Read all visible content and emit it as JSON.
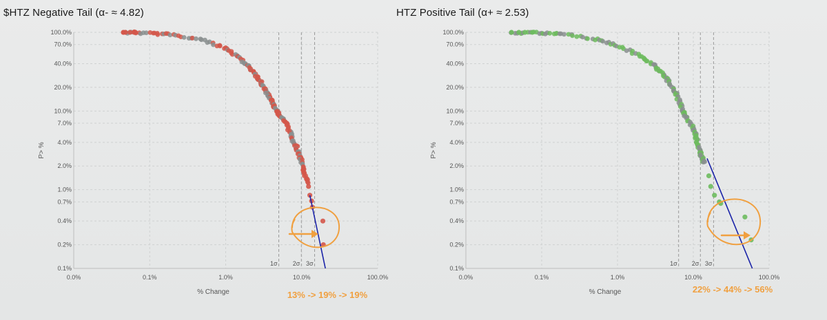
{
  "colors": {
    "left_points": "#d4574a",
    "right_points": "#6dbb5e",
    "fit_line": "#1a23a8",
    "annotation": "#f0a040",
    "grid": "#cfd1d1",
    "sigma_line": "#9a9a9a"
  },
  "chart_data": [
    {
      "type": "scatter",
      "title": "$HTZ Negative Tail (α- ≈ 4.82)",
      "xlabel": "% Change",
      "ylabel": "P> %",
      "x_scale": "log",
      "y_scale": "log",
      "xlim": [
        0.01,
        100
      ],
      "ylim": [
        0.1,
        100
      ],
      "x_ticks": [
        "0.0%",
        "0.1%",
        "1.0%",
        "10.0%",
        "100.0%"
      ],
      "y_ticks": [
        "100.0%",
        "70.0%",
        "40.0%",
        "20.0%",
        "10.0%",
        "7.0%",
        "4.0%",
        "2.0%",
        "1.0%",
        "0.7%",
        "0.4%",
        "0.2%",
        "0.1%"
      ],
      "grid": true,
      "sigma_lines": [
        {
          "label": "1σ",
          "x": 5.0
        },
        {
          "label": "2σ",
          "x": 9.9
        },
        {
          "label": "3σ",
          "x": 14.8
        }
      ],
      "fit_line": {
        "points": [
          [
            12.8,
            0.85
          ],
          [
            20.5,
            0.1
          ]
        ],
        "alpha": 4.82
      },
      "curve": [
        [
          0.045,
          100
        ],
        [
          0.1,
          98
        ],
        [
          0.2,
          93
        ],
        [
          0.5,
          80
        ],
        [
          1.0,
          62
        ],
        [
          1.5,
          48
        ],
        [
          2.0,
          37
        ],
        [
          2.5,
          28
        ],
        [
          3.0,
          22
        ],
        [
          3.5,
          17
        ],
        [
          4.0,
          13.5
        ],
        [
          4.5,
          11
        ],
        [
          5.0,
          9.0
        ],
        [
          6.0,
          7.5
        ],
        [
          7.0,
          5.5
        ],
        [
          8.0,
          4.0
        ],
        [
          9.0,
          3.0
        ],
        [
          10.0,
          2.2
        ],
        [
          11.0,
          1.6
        ],
        [
          12.0,
          1.2
        ]
      ],
      "outliers": [
        [
          0.045,
          100
        ],
        [
          0.048,
          100
        ],
        [
          0.055,
          100
        ],
        [
          0.062,
          100
        ],
        [
          0.065,
          100
        ],
        [
          12.3,
          1.1
        ],
        [
          12.8,
          0.85
        ],
        [
          13.5,
          0.72
        ],
        [
          13.8,
          0.6
        ],
        [
          19.0,
          0.4
        ],
        [
          19.3,
          0.2
        ]
      ],
      "annotation": {
        "text": "13% -> 19% -> 19%"
      }
    },
    {
      "type": "scatter",
      "title": "HTZ Positive Tail (α+ ≈ 2.53)",
      "xlabel": "% Change",
      "ylabel": "P> %",
      "x_scale": "log",
      "y_scale": "log",
      "xlim": [
        0.01,
        100
      ],
      "ylim": [
        0.1,
        100
      ],
      "x_ticks": [
        "0.0%",
        "0.1%",
        "1.0%",
        "10.0%",
        "100.0%"
      ],
      "y_ticks": [
        "100.0%",
        "70.0%",
        "40.0%",
        "20.0%",
        "10.0%",
        "7.0%",
        "4.0%",
        "2.0%",
        "1.0%",
        "0.7%",
        "0.4%",
        "0.2%",
        "0.1%"
      ],
      "grid": true,
      "sigma_lines": [
        {
          "label": "1σ",
          "x": 6.4
        },
        {
          "label": "2σ",
          "x": 12.4
        },
        {
          "label": "3σ",
          "x": 18.5
        }
      ],
      "fit_line": {
        "points": [
          [
            15.2,
            2.5
          ],
          [
            60,
            0.1
          ]
        ],
        "alpha": 2.53
      },
      "curve": [
        [
          0.04,
          100
        ],
        [
          0.1,
          98
        ],
        [
          0.2,
          94
        ],
        [
          0.5,
          82
        ],
        [
          1.0,
          68
        ],
        [
          2.0,
          50
        ],
        [
          3.0,
          38
        ],
        [
          4.0,
          30
        ],
        [
          5.0,
          22
        ],
        [
          6.0,
          16
        ],
        [
          7.0,
          11
        ],
        [
          8.0,
          8.5
        ],
        [
          10.0,
          6.0
        ],
        [
          11.0,
          4.5
        ],
        [
          12.0,
          3.3
        ],
        [
          13.0,
          2.6
        ],
        [
          14.0,
          2.2
        ]
      ],
      "outliers": [
        [
          0.04,
          100
        ],
        [
          0.05,
          100
        ],
        [
          0.06,
          100
        ],
        [
          0.075,
          100
        ],
        [
          16.0,
          1.5
        ],
        [
          17.0,
          1.1
        ],
        [
          19.0,
          0.85
        ],
        [
          22.0,
          0.7
        ],
        [
          23.0,
          0.67
        ],
        [
          48.0,
          0.45
        ],
        [
          58.0,
          0.23
        ]
      ],
      "annotation": {
        "text": "22% -> 44% -> 56%"
      }
    }
  ]
}
